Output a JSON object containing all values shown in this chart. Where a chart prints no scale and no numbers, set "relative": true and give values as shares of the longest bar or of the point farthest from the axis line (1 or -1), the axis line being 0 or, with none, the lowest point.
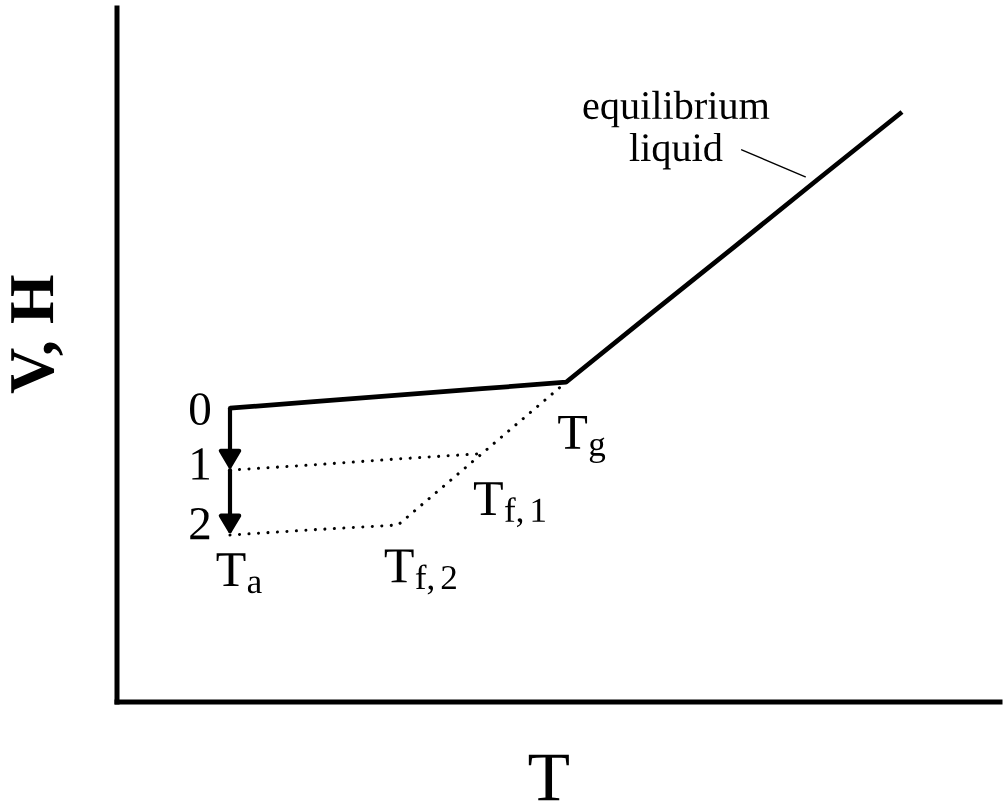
{
  "chart_data": {
    "type": "line",
    "relative": true,
    "xlabel": "T",
    "ylabel": "V, H",
    "categories": [
      null,
      null,
      null,
      null,
      null,
      null,
      null,
      null,
      null
    ],
    "series": [
      {
        "values": [
          0.498,
          0.509,
          0.52,
          0.531,
          0.542,
          0.657,
          0.771,
          0.886,
          1.0
        ],
        "color": "#000000",
        "line_style": "solid"
      },
      {
        "values": [
          0.393,
          0.402,
          0.412,
          0.421,
          null,
          null,
          null,
          null,
          null
        ],
        "color": "#000000",
        "line_style": "dotted"
      },
      {
        "values": [
          0.283,
          0.292,
          0.3,
          0.421,
          0.542,
          null,
          null,
          null,
          null
        ],
        "color": "#000000",
        "line_style": "dotted"
      }
    ],
    "annotations": [
      "0",
      "1",
      "2",
      "T$_{a}$",
      "T$_{f,2}$",
      "T$_{f,1}$",
      "T$_{g}$",
      "equilibrium\nliquid"
    ]
  }
}
